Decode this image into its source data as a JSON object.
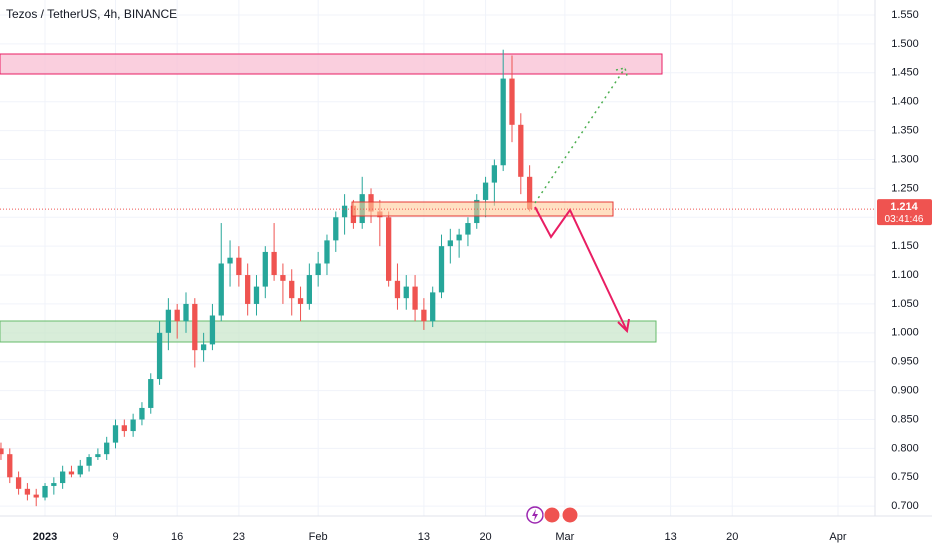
{
  "chart_data": {
    "type": "candlestick",
    "title": "Tezos / TetherUS, 4h, BINANCE",
    "x": [
      -5,
      -4,
      -3,
      -2,
      -1,
      0,
      1,
      2,
      3,
      4,
      5,
      6,
      7,
      8,
      9,
      10,
      11,
      12,
      13,
      14,
      15,
      16,
      17,
      18,
      19,
      20,
      21,
      22,
      23,
      24,
      25,
      26,
      27,
      28,
      29,
      30,
      31,
      32,
      33,
      34,
      35,
      36,
      37,
      38,
      39,
      40,
      41,
      42,
      43,
      44,
      45,
      46,
      47,
      48,
      49,
      50,
      51,
      52,
      53,
      54,
      55
    ],
    "open": [
      0.8,
      0.79,
      0.75,
      0.73,
      0.72,
      0.715,
      0.735,
      0.74,
      0.76,
      0.755,
      0.77,
      0.785,
      0.79,
      0.81,
      0.84,
      0.83,
      0.85,
      0.87,
      0.92,
      1.0,
      1.04,
      1.02,
      1.05,
      0.97,
      0.98,
      1.03,
      1.12,
      1.13,
      1.1,
      1.05,
      1.08,
      1.14,
      1.1,
      1.09,
      1.06,
      1.05,
      1.1,
      1.12,
      1.16,
      1.2,
      1.22,
      1.19,
      1.24,
      1.21,
      1.2,
      1.09,
      1.06,
      1.08,
      1.04,
      1.02,
      1.07,
      1.15,
      1.16,
      1.17,
      1.19,
      1.23,
      1.26,
      1.29,
      1.44,
      1.36,
      1.27
    ],
    "high": [
      0.81,
      0.8,
      0.76,
      0.74,
      0.73,
      0.74,
      0.75,
      0.77,
      0.77,
      0.78,
      0.79,
      0.8,
      0.82,
      0.85,
      0.85,
      0.86,
      0.88,
      0.93,
      1.02,
      1.06,
      1.05,
      1.07,
      1.06,
      1.0,
      1.05,
      1.19,
      1.16,
      1.15,
      1.12,
      1.1,
      1.15,
      1.19,
      1.12,
      1.11,
      1.08,
      1.12,
      1.14,
      1.17,
      1.21,
      1.24,
      1.23,
      1.27,
      1.25,
      1.23,
      1.21,
      1.12,
      1.1,
      1.1,
      1.06,
      1.08,
      1.17,
      1.18,
      1.18,
      1.2,
      1.24,
      1.27,
      1.3,
      1.49,
      1.48,
      1.38,
      1.29
    ],
    "low": [
      0.78,
      0.74,
      0.72,
      0.71,
      0.7,
      0.71,
      0.72,
      0.73,
      0.75,
      0.75,
      0.76,
      0.78,
      0.78,
      0.8,
      0.82,
      0.82,
      0.84,
      0.86,
      0.91,
      0.97,
      0.99,
      1.0,
      0.94,
      0.95,
      0.97,
      1.02,
      1.08,
      1.08,
      1.03,
      1.03,
      1.06,
      1.09,
      1.05,
      1.03,
      1.02,
      1.04,
      1.08,
      1.1,
      1.14,
      1.17,
      1.18,
      1.18,
      1.19,
      1.15,
      1.08,
      1.04,
      1.04,
      1.02,
      1.005,
      1.01,
      1.06,
      1.12,
      1.13,
      1.15,
      1.18,
      1.2,
      1.22,
      1.28,
      1.33,
      1.24,
      1.21
    ],
    "close": [
      0.79,
      0.75,
      0.73,
      0.72,
      0.715,
      0.735,
      0.74,
      0.76,
      0.755,
      0.77,
      0.785,
      0.79,
      0.81,
      0.84,
      0.83,
      0.85,
      0.87,
      0.92,
      1.0,
      1.04,
      1.02,
      1.05,
      0.97,
      0.98,
      1.03,
      1.12,
      1.13,
      1.1,
      1.05,
      1.08,
      1.14,
      1.1,
      1.09,
      1.06,
      1.05,
      1.1,
      1.12,
      1.16,
      1.2,
      1.22,
      1.19,
      1.24,
      1.21,
      1.2,
      1.09,
      1.06,
      1.08,
      1.04,
      1.02,
      1.07,
      1.15,
      1.16,
      1.17,
      1.19,
      1.23,
      1.26,
      1.29,
      1.44,
      1.36,
      1.27,
      1.214
    ],
    "up_color": "#26a69a",
    "down_color": "#ef5350",
    "xlim": [
      -5.11,
      94.2
    ],
    "ylim": [
      0.683,
      1.576
    ],
    "xticks": [
      {
        "value": 0,
        "label": "2023"
      },
      {
        "value": 8,
        "label": "9"
      },
      {
        "value": 15,
        "label": "16"
      },
      {
        "value": 22,
        "label": "23"
      },
      {
        "value": 31,
        "label": "Feb"
      },
      {
        "value": 43,
        "label": "13"
      },
      {
        "value": 50,
        "label": "20"
      },
      {
        "value": 59,
        "label": "Mar"
      },
      {
        "value": 71,
        "label": "13"
      },
      {
        "value": 78,
        "label": "20"
      },
      {
        "value": 90,
        "label": "Apr"
      }
    ],
    "yticks": [
      {
        "value": 0.7,
        "label": "0.700"
      },
      {
        "value": 0.75,
        "label": "0.750"
      },
      {
        "value": 0.8,
        "label": "0.800"
      },
      {
        "value": 0.85,
        "label": "0.850"
      },
      {
        "value": 0.9,
        "label": "0.900"
      },
      {
        "value": 0.95,
        "label": "0.950"
      },
      {
        "value": 1.0,
        "label": "1.000"
      },
      {
        "value": 1.05,
        "label": "1.050"
      },
      {
        "value": 1.1,
        "label": "1.100"
      },
      {
        "value": 1.15,
        "label": "1.150"
      },
      {
        "value": 1.2,
        "label": "1.200"
      },
      {
        "value": 1.25,
        "label": "1.250"
      },
      {
        "value": 1.3,
        "label": "1.300"
      },
      {
        "value": 1.35,
        "label": "1.350"
      },
      {
        "value": 1.4,
        "label": "1.400"
      },
      {
        "value": 1.45,
        "label": "1.450"
      },
      {
        "value": 1.5,
        "label": "1.500"
      },
      {
        "value": 1.55,
        "label": "1.550"
      }
    ],
    "grid": true,
    "last_price": 1.214,
    "countdown": "03:41:46"
  }
}
